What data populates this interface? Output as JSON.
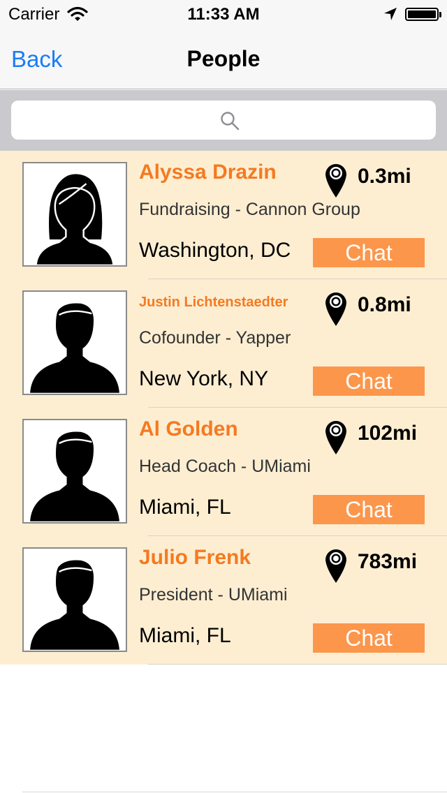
{
  "status_bar": {
    "carrier": "Carrier",
    "time": "11:33 AM"
  },
  "nav": {
    "back_label": "Back",
    "title": "People"
  },
  "search": {
    "icon": "search-icon"
  },
  "colors": {
    "row_bg": "#fdeed2",
    "accent": "#f47a21",
    "chat_button": "#fc964b",
    "back_link": "#1a7cf5"
  },
  "people": [
    {
      "name": "Alyssa Drazin",
      "role": "Fundraising - Cannon Group",
      "city": "Washington, DC",
      "distance": "0.3mi",
      "chat_label": "Chat",
      "avatar": "female-silhouette"
    },
    {
      "name": "Justin Lichtenstaedter",
      "role": "Cofounder - Yapper",
      "city": "New York, NY",
      "distance": "0.8mi",
      "chat_label": "Chat",
      "avatar": "male-silhouette"
    },
    {
      "name": "Al Golden",
      "role": "Head Coach - UMiami",
      "city": "Miami, FL",
      "distance": "102mi",
      "chat_label": "Chat",
      "avatar": "male-silhouette"
    },
    {
      "name": "Julio Frenk",
      "role": "President - UMiami",
      "city": "Miami, FL",
      "distance": "783mi",
      "chat_label": "Chat",
      "avatar": "male-silhouette"
    }
  ]
}
